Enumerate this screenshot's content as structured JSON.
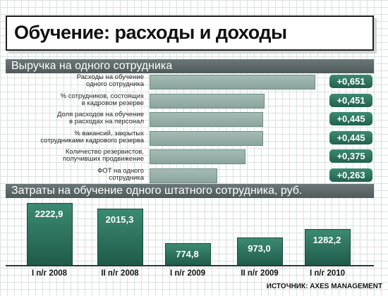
{
  "header": {
    "title": "Обучение: расходы и доходы"
  },
  "colors": {
    "band": "#5a6667",
    "hbar": "#9bb3ac",
    "badge": "#2b6f5c",
    "vbar": "#2a6b58"
  },
  "source": "ИСТОЧНИК: AXES MANAGEMENT",
  "chart_data": [
    {
      "type": "bar",
      "orientation": "horizontal",
      "title": "Выручка на одного сотрудника",
      "categories": [
        "Расходы на обучение одного сотрудника",
        "% сотрудников, состоящих в кадровом резерве",
        "Доля расходов на обучение в расходах на персонал",
        "% вакансий, закрытых сотрудниками кадрового резерва",
        "Количество резервистов, получивших продвижение",
        "ФОТ на одного сотрудника"
      ],
      "labels": [
        [
          "Расходы на обучение",
          "одного сотрудника"
        ],
        [
          "% сотрудников, состоящих",
          "в кадровом резерве"
        ],
        [
          "Доля расходов на обучение",
          "в расходах на персонал"
        ],
        [
          "% вакансий, закрытых",
          "сотрудниками кадрового резерва"
        ],
        [
          "Количество резервистов,",
          "получивших продвижение"
        ],
        [
          "ФОТ на одного",
          "сотрудника"
        ]
      ],
      "values": [
        0.651,
        0.451,
        0.445,
        0.445,
        0.375,
        0.263
      ],
      "value_labels": [
        "+0,651",
        "+0,451",
        "+0,445",
        "+0,445",
        "+0,375",
        "+0,263"
      ]
    },
    {
      "type": "bar",
      "title": "Затраты на обучение одного штатного сотрудника, руб.",
      "categories": [
        "I п/г 2008",
        "II п/г 2008",
        "I п/г 2009",
        "II п/г 2009",
        "I п/г 2010"
      ],
      "values": [
        2222.9,
        2015.3,
        774.8,
        973.0,
        1282.2
      ],
      "value_labels": [
        "2222,9",
        "2015,3",
        "774,8",
        "973,0",
        "1282,2"
      ]
    }
  ]
}
